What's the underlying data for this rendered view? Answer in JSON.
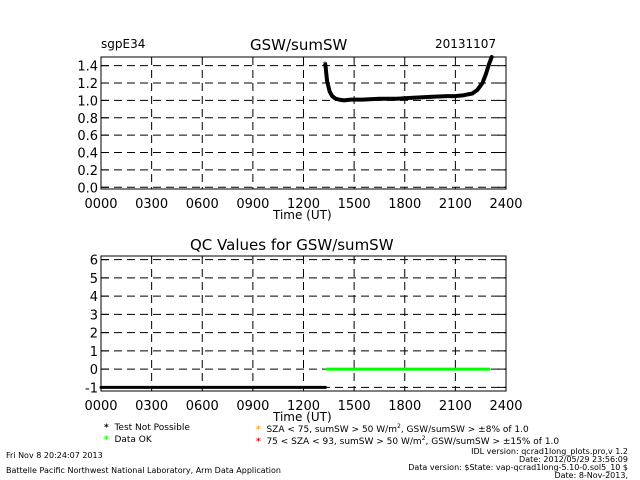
{
  "header": {
    "site": "sgpE34",
    "date": "20131107"
  },
  "chart_data": [
    {
      "type": "line",
      "title": "GSW/sumSW",
      "xlabel": "Time (UT)",
      "ylabel": "",
      "xlim": [
        0,
        2400
      ],
      "ylim": [
        -0.02,
        1.5
      ],
      "x_ticks": [
        "0000",
        "0300",
        "0600",
        "0900",
        "1200",
        "1500",
        "1800",
        "2100",
        "2400"
      ],
      "y_ticks": [
        "0.0",
        "0.2",
        "0.4",
        "0.6",
        "0.8",
        "1.0",
        "1.2",
        "1.4"
      ],
      "y_tick_values": [
        0,
        0.2,
        0.4,
        0.6,
        0.8,
        1.0,
        1.2,
        1.4
      ],
      "grid": true,
      "series": [
        {
          "color": "#000000",
          "x": [
            1330,
            1340,
            1355,
            1370,
            1390,
            1410,
            1440,
            1480,
            1550,
            1650,
            1750,
            1850,
            1950,
            2050,
            2100,
            2150,
            2200,
            2230,
            2260,
            2280,
            2300,
            2315
          ],
          "y": [
            1.41,
            1.22,
            1.1,
            1.05,
            1.02,
            1.01,
            1.0,
            1.01,
            1.01,
            1.02,
            1.02,
            1.03,
            1.04,
            1.05,
            1.05,
            1.06,
            1.08,
            1.12,
            1.2,
            1.3,
            1.42,
            1.5
          ]
        }
      ]
    },
    {
      "type": "line",
      "title": "QC Values for GSW/sumSW",
      "xlabel": "Time (UT)",
      "ylabel": "",
      "xlim": [
        0,
        2400
      ],
      "ylim": [
        -1.2,
        6.2
      ],
      "x_ticks": [
        "0000",
        "0300",
        "0600",
        "0900",
        "1200",
        "1500",
        "1800",
        "2100",
        "2400"
      ],
      "y_ticks": [
        "-1",
        "0",
        "1",
        "2",
        "3",
        "4",
        "5",
        "6"
      ],
      "y_tick_values": [
        -1,
        0,
        1,
        2,
        3,
        4,
        5,
        6
      ],
      "grid": true,
      "series": [
        {
          "color": "#000000",
          "x": [
            0,
            1330
          ],
          "y": [
            -1,
            -1
          ]
        },
        {
          "color": "#00ff00",
          "x": [
            1340,
            2300
          ],
          "y": [
            0,
            0
          ]
        }
      ]
    }
  ],
  "legend": {
    "not_possible": "Test Not Possible",
    "data_ok": "Data OK",
    "warn_pre": "SZA < 75, sumSW > 50 W/m",
    "warn_post": ", GSW/sumSW > ±8% of 1.0",
    "bad_pre": "75 < SZA < 93, sumSW > 50 W/m",
    "bad_post": ", GSW/sumSW > ±15% of 1.0",
    "sup": "2",
    "colors": {
      "not_possible": "#000000",
      "data_ok": "#00ff00",
      "warn": "#ffa500",
      "bad": "#ff0000"
    }
  },
  "footer": {
    "timestamp": "Fri Nov  8 20:24:07 2013",
    "org": "Battelle Pacific Northwest National Laboratory, Arm Data Application",
    "idl": "IDL version: qcrad1long_plots.pro,v 1.2",
    "date": "Date: 2012/05/29 23:56:09",
    "data_version": "Data version: $State: vap-qcrad1long-5.10-0.sol5_10 $",
    "date2": "Date: 8-Nov-2013,"
  }
}
